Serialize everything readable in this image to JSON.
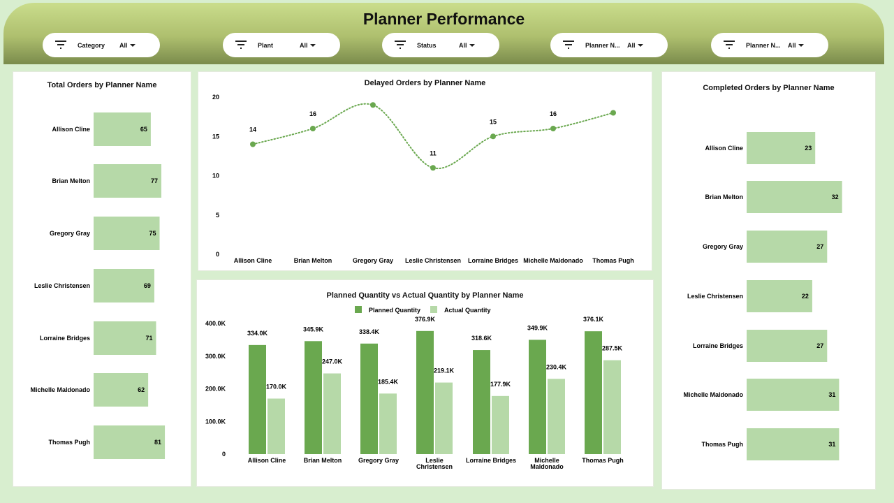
{
  "header": {
    "title": "Planner Performance",
    "filters": [
      {
        "label": "Category",
        "value": "All"
      },
      {
        "label": "Plant",
        "value": "All"
      },
      {
        "label": "Status",
        "value": "All"
      },
      {
        "label": "Planner N...",
        "value": "All"
      },
      {
        "label": "Planner N...",
        "value": "All"
      }
    ]
  },
  "colors": {
    "dark_green": "#6aa84f",
    "light_green": "#b6d9a8",
    "banner_top": "#cadd8c",
    "banner_bottom": "#7a8b4c"
  },
  "chart_data": [
    {
      "type": "bar",
      "orientation": "horizontal",
      "title": "Total Orders by Planner Name",
      "categories": [
        "Allison Cline",
        "Brian Melton",
        "Gregory Gray",
        "Leslie Christensen",
        "Lorraine Bridges",
        "Michelle Maldonado",
        "Thomas Pugh"
      ],
      "values": [
        65,
        77,
        75,
        69,
        71,
        62,
        81
      ],
      "color": "#b6d9a8"
    },
    {
      "type": "line",
      "title": "Delayed Orders by Planner Name",
      "categories": [
        "Allison Cline",
        "Brian Melton",
        "Gregory Gray",
        "Leslie Christensen",
        "Lorraine Bridges",
        "Michelle Maldonado",
        "Thomas Pugh"
      ],
      "values": [
        14,
        16,
        19,
        11,
        15,
        16,
        18
      ],
      "data_labels": [
        "14",
        "16",
        "",
        "11",
        "15",
        "16",
        ""
      ],
      "ylim": [
        0,
        20
      ],
      "yticks": [
        "0",
        "5",
        "10",
        "15",
        "20"
      ],
      "line_style": "dotted",
      "color": "#6aa84f"
    },
    {
      "type": "bar",
      "title": "Planned Quantity vs Actual Quantity by Planner Name",
      "categories": [
        "Allison Cline",
        "Brian Melton",
        "Gregory Gray",
        "Leslie Christensen",
        "Lorraine Bridges",
        "Michelle Maldonado",
        "Thomas Pugh"
      ],
      "series": [
        {
          "name": "Planned Quantity",
          "values": [
            334000,
            345900,
            338400,
            376900,
            318600,
            349900,
            376100
          ],
          "labels": [
            "334.0K",
            "345.9K",
            "338.4K",
            "376.9K",
            "318.6K",
            "349.9K",
            "376.1K"
          ],
          "color": "#6aa84f"
        },
        {
          "name": "Actual Quantity",
          "values": [
            170000,
            247000,
            185400,
            219100,
            177900,
            230400,
            287500
          ],
          "labels": [
            "170.0K",
            "247.0K",
            "185.4K",
            "219.1K",
            "177.9K",
            "230.4K",
            "287.5K"
          ],
          "color": "#b6d9a8"
        }
      ],
      "ylim": [
        0,
        400000
      ],
      "yticks": [
        "0",
        "100.0K",
        "200.0K",
        "300.0K",
        "400.0K"
      ],
      "legend": "top-center"
    },
    {
      "type": "bar",
      "orientation": "horizontal",
      "title": "Completed Orders by Planner Name",
      "categories": [
        "Allison Cline",
        "Brian Melton",
        "Gregory Gray",
        "Leslie Christensen",
        "Lorraine Bridges",
        "Michelle Maldonado",
        "Thomas Pugh"
      ],
      "values": [
        23,
        32,
        27,
        22,
        27,
        31,
        31
      ],
      "color": "#b6d9a8"
    }
  ]
}
